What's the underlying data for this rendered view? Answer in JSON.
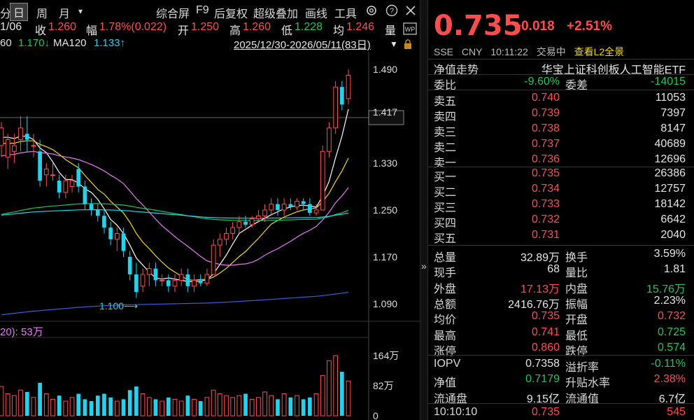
{
  "toolbar": {
    "prev_partial": "分",
    "day_tab": "日",
    "week_tab": "周",
    "month_tab": "月",
    "more": "▾",
    "composite": "综合屏",
    "f9": "F9",
    "adjust": "后复权",
    "overlay": "超级叠加",
    "draw": "画线",
    "tools": "工具"
  },
  "bar_info": {
    "date": "1/06",
    "close_label": "收",
    "close": "1.260",
    "range_label": "幅",
    "range": "1.78%(0.022)",
    "open_label": "开",
    "open": "1.250",
    "high_label": "高",
    "high": "1.260",
    "low_label": "低",
    "low": "1.228",
    "avg_label": "均",
    "avg": "1.246",
    "volume_label": "量"
  },
  "ma": {
    "ma60_partial": "60",
    "ma60": "1.170↓",
    "ma120_label": "MA120",
    "ma120": "1.133↑",
    "range": "2025/12/30-2026/05/11(83日)"
  },
  "price_axis": {
    "labels": [
      "1.490",
      "1.417",
      "1.330",
      "1.250",
      "1.170",
      "1.090"
    ],
    "min_marker": "1.100⟶"
  },
  "volume_axis": {
    "title": "20): 53万",
    "labels": [
      "164万",
      "82万",
      "0"
    ]
  },
  "colors": {
    "up": "#ff4d4f",
    "down": "#22d3ee",
    "ma5": "#ffffff",
    "ma10": "#f5d90a",
    "ma20": "#e879f9",
    "ma60": "#22c55e",
    "ma120_line": "#22d3ee",
    "ma250": "#3b5bdb"
  },
  "quote": {
    "price": "0.735",
    "change": "+0.018",
    "change_pct": "+2.51%",
    "exchange": "SSE",
    "currency": "CNY",
    "time": "10:11:22",
    "status": "交易中",
    "l2_link": "查看L2全景",
    "nav_trend": "净值走势",
    "fund_name": "华宝上证科创板人工智能ETF",
    "weibi_label": "委比",
    "weibi": "-9.60%",
    "weicha_label": "委差",
    "weicha": "-14015",
    "asks": [
      {
        "label": "卖五",
        "price": "0.740",
        "vol": "11053"
      },
      {
        "label": "卖四",
        "price": "0.739",
        "vol": "7397"
      },
      {
        "label": "卖三",
        "price": "0.738",
        "vol": "8147"
      },
      {
        "label": "卖二",
        "price": "0.737",
        "vol": "40689"
      },
      {
        "label": "卖一",
        "price": "0.736",
        "vol": "12696"
      }
    ],
    "bids": [
      {
        "label": "买一",
        "price": "0.735",
        "vol": "26386"
      },
      {
        "label": "买二",
        "price": "0.734",
        "vol": "12757"
      },
      {
        "label": "买三",
        "price": "0.733",
        "vol": "18142"
      },
      {
        "label": "买四",
        "price": "0.732",
        "vol": "6642"
      },
      {
        "label": "买五",
        "price": "0.731",
        "vol": "2040"
      }
    ],
    "stats": [
      {
        "l1": "总量",
        "v1": "32.89万",
        "c1": "white",
        "l2": "换手",
        "v2": "3.59%",
        "c2": "white"
      },
      {
        "l1": "现手",
        "v1": "68",
        "c1": "white",
        "l2": "量比",
        "v2": "1.81",
        "c2": "white"
      },
      {
        "l1": "外盘",
        "v1": "17.13万",
        "c1": "red",
        "l2": "内盘",
        "v2": "15.76万",
        "c2": "green"
      },
      {
        "l1": "总额",
        "v1": "2416.76万",
        "c1": "white",
        "l2": "振幅",
        "v2": "2.23%",
        "c2": "white"
      },
      {
        "l1": "均价",
        "v1": "0.735",
        "c1": "red",
        "l2": "开盘",
        "v2": "0.732",
        "c2": "red"
      },
      {
        "l1": "最高",
        "v1": "0.741",
        "c1": "red",
        "l2": "最低",
        "v2": "0.725",
        "c2": "green"
      },
      {
        "l1": "涨停",
        "v1": "0.860",
        "c1": "red",
        "l2": "跌停",
        "v2": "0.574",
        "c2": "green"
      }
    ],
    "extra": [
      {
        "l1": "IOPV",
        "v1": "0.7358",
        "c1": "white",
        "l2": "溢折率",
        "v2": "-0.11%",
        "c2": "green"
      },
      {
        "l1": "净值",
        "v1": "0.7179",
        "c1": "green",
        "l2": "升贴水率",
        "v2": "2.38%",
        "c2": "red"
      },
      {
        "l1": "流通盘",
        "v1": "9.15亿",
        "c1": "white",
        "l2": "流通值",
        "v2": "6.7亿",
        "c2": "white"
      }
    ],
    "tick": {
      "time": "10:10:10",
      "price": "0.735",
      "vol": "545"
    }
  },
  "chart_data": {
    "type": "candlestick",
    "y_range": [
      1.06,
      1.52
    ],
    "candles": [
      [
        1.36,
        1.4,
        1.34,
        1.39
      ],
      [
        1.34,
        1.38,
        1.32,
        1.37
      ],
      [
        1.35,
        1.38,
        1.33,
        1.36
      ],
      [
        1.37,
        1.41,
        1.35,
        1.39
      ],
      [
        1.38,
        1.41,
        1.35,
        1.37
      ],
      [
        1.36,
        1.38,
        1.34,
        1.36
      ],
      [
        1.35,
        1.37,
        1.29,
        1.3
      ],
      [
        1.31,
        1.33,
        1.29,
        1.32
      ],
      [
        1.31,
        1.33,
        1.3,
        1.31
      ],
      [
        1.3,
        1.31,
        1.27,
        1.28
      ],
      [
        1.28,
        1.31,
        1.27,
        1.3
      ],
      [
        1.29,
        1.31,
        1.28,
        1.3
      ],
      [
        1.32,
        1.33,
        1.28,
        1.29
      ],
      [
        1.29,
        1.3,
        1.25,
        1.26
      ],
      [
        1.26,
        1.27,
        1.24,
        1.25
      ],
      [
        1.25,
        1.26,
        1.23,
        1.24
      ],
      [
        1.24,
        1.25,
        1.21,
        1.22
      ],
      [
        1.22,
        1.23,
        1.19,
        1.2
      ],
      [
        1.2,
        1.22,
        1.18,
        1.21
      ],
      [
        1.21,
        1.22,
        1.17,
        1.18
      ],
      [
        1.17,
        1.18,
        1.13,
        1.14
      ],
      [
        1.14,
        1.16,
        1.1,
        1.11
      ],
      [
        1.12,
        1.15,
        1.11,
        1.14
      ],
      [
        1.14,
        1.16,
        1.12,
        1.15
      ],
      [
        1.15,
        1.16,
        1.12,
        1.13
      ],
      [
        1.13,
        1.14,
        1.12,
        1.13
      ],
      [
        1.13,
        1.14,
        1.11,
        1.12
      ],
      [
        1.12,
        1.14,
        1.11,
        1.13
      ],
      [
        1.13,
        1.15,
        1.12,
        1.14
      ],
      [
        1.14,
        1.15,
        1.11,
        1.12
      ],
      [
        1.12,
        1.14,
        1.11,
        1.13
      ],
      [
        1.13,
        1.14,
        1.12,
        1.125
      ],
      [
        1.125,
        1.15,
        1.12,
        1.14
      ],
      [
        1.14,
        1.2,
        1.14,
        1.19
      ],
      [
        1.19,
        1.21,
        1.17,
        1.2
      ],
      [
        1.2,
        1.22,
        1.19,
        1.21
      ],
      [
        1.21,
        1.23,
        1.2,
        1.22
      ],
      [
        1.22,
        1.24,
        1.21,
        1.23
      ],
      [
        1.23,
        1.24,
        1.22,
        1.225
      ],
      [
        1.225,
        1.24,
        1.22,
        1.235
      ],
      [
        1.235,
        1.25,
        1.23,
        1.24
      ],
      [
        1.24,
        1.26,
        1.23,
        1.25
      ],
      [
        1.25,
        1.27,
        1.24,
        1.26
      ],
      [
        1.26,
        1.27,
        1.24,
        1.25
      ],
      [
        1.25,
        1.27,
        1.24,
        1.26
      ],
      [
        1.26,
        1.27,
        1.25,
        1.255
      ],
      [
        1.255,
        1.27,
        1.25,
        1.265
      ],
      [
        1.265,
        1.27,
        1.25,
        1.26
      ],
      [
        1.26,
        1.27,
        1.24,
        1.245
      ],
      [
        1.245,
        1.26,
        1.24,
        1.25
      ],
      [
        1.25,
        1.36,
        1.25,
        1.35
      ],
      [
        1.35,
        1.4,
        1.34,
        1.39
      ],
      [
        1.39,
        1.47,
        1.38,
        1.46
      ],
      [
        1.46,
        1.47,
        1.42,
        1.43
      ],
      [
        1.44,
        1.49,
        1.43,
        1.48
      ]
    ],
    "ma_lines": [
      {
        "name": "MA5",
        "values_from": "computed"
      },
      {
        "name": "MA10",
        "values_from": "computed"
      },
      {
        "name": "MA20",
        "values_from": "computed"
      },
      {
        "name": "MA60",
        "values_from": "computed"
      },
      {
        "name": "MA120",
        "values_from": "computed"
      }
    ],
    "volumes": [
      80,
      60,
      55,
      70,
      65,
      50,
      90,
      60,
      45,
      55,
      40,
      50,
      60,
      45,
      40,
      55,
      60,
      50,
      40,
      45,
      70,
      80,
      60,
      50,
      45,
      40,
      50,
      45,
      40,
      55,
      45,
      40,
      50,
      70,
      60,
      55,
      50,
      55,
      60,
      45,
      50,
      65,
      55,
      45,
      60,
      50,
      55,
      45,
      50,
      60,
      110,
      150,
      164,
      120,
      95
    ],
    "volume_max": 164
  }
}
